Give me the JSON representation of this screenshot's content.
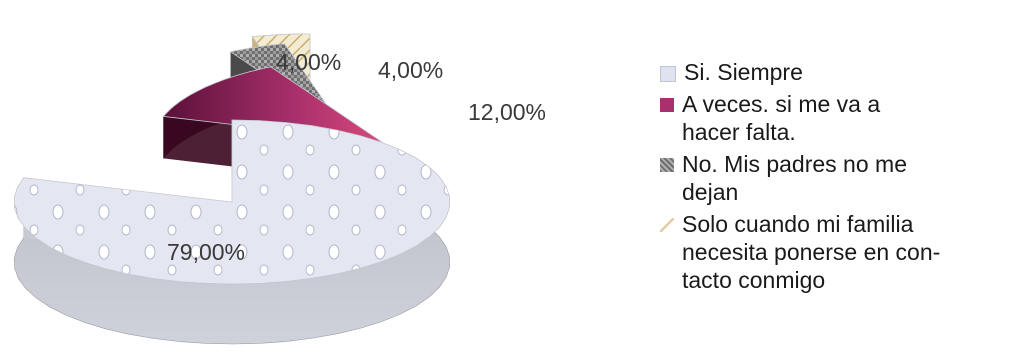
{
  "chart_data": {
    "type": "pie",
    "title": "",
    "categories": [
      "Si. Siempre",
      "A veces. si me va a\nhacer falta.",
      "No. Mis padres no me\ndejan",
      "Solo cuando mi familia\nnecesita ponerse en con-\ntacto conmigo"
    ],
    "values": [
      79,
      12,
      4,
      4
    ],
    "data_labels": [
      "79,00%",
      "12,00%",
      "4,00%",
      "4,00%"
    ],
    "colors": [
      "#dfe3f0",
      "#a8306c",
      "#8c8c8c",
      "#e9dcb4"
    ],
    "legend_position": "right",
    "style": "3d-exploded"
  }
}
